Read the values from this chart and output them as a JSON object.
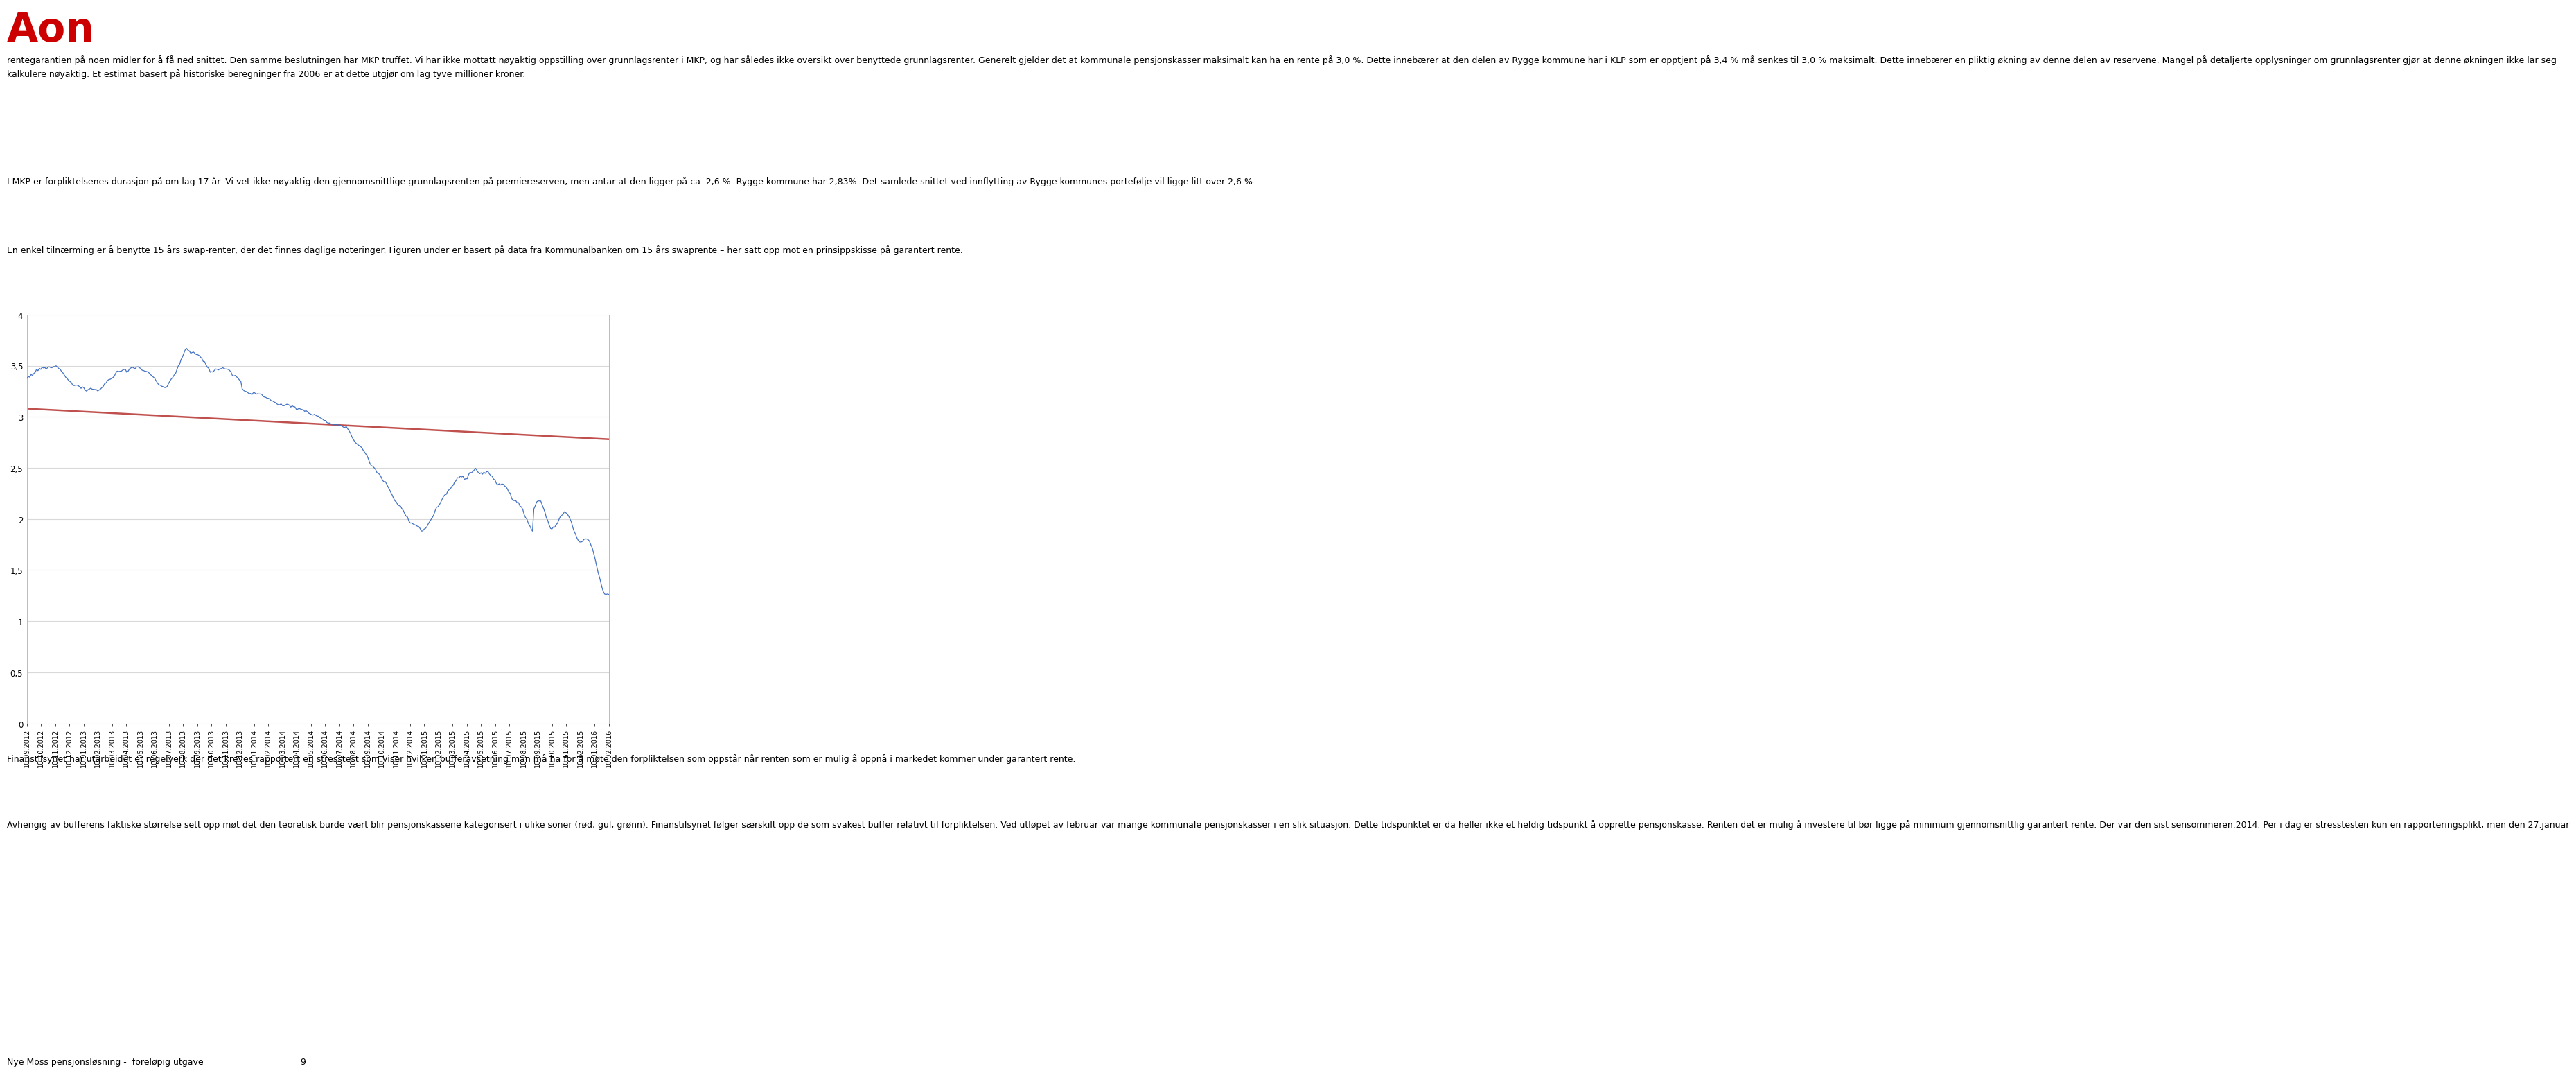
{
  "page_bg": "#ffffff",
  "text_color": "#000000",
  "logo_color": "#cc0000",
  "paragraph1": "rentegarantien på noen midler for å få ned snittet. Den samme beslutningen har MKP truffet. Vi har ikke mottatt nøyaktig oppstilling over grunnlagsrenter i MKP, og har således ikke oversikt over benyttede grunnlagsrenter. Generelt gjelder det at kommunale pensjonskasser maksimalt kan ha en rente på 3,0 %. Dette innebærer at den delen av Rygge kommune har i KLP som er opptjent på 3,4 % må senkes til 3,0 % maksimalt. Dette innebærer en pliktig økning av denne delen av reservene. Mangel på detaljerte opplysninger om grunnlagsrenter gjør at denne økningen ikke lar seg kalkulere nøyaktig. Et estimat basert på historiske beregninger fra 2006 er at dette utgjør om lag tyve millioner kroner.",
  "paragraph2": "I MKP er forpliktelsenes durasjon på om lag 17 år. Vi vet ikke nøyaktig den gjennomsnittlige grunnlagsrenten på premiereserven, men antar at den ligger på ca. 2,6 %. Rygge kommune har 2,83%. Det samlede snittet ved innflytting av Rygge kommunes portefølje vil ligge litt over 2,6 %.",
  "paragraph3": "En enkel tilnærming er å benytte 15 års swap-renter, der det finnes daglige noteringer. Figuren under er basert på data fra Kommunalbanken om 15 års swaprente – her satt opp mot en prinsippskisse på garantert rente.",
  "paragraph4": "Finanstilsynet har utarbeidet et regelverk der det kreves rapportert en stresstest som viser hvilken bufferavsetning man må ha for å møte den forpliktelsen som oppstår når renten som er mulig å oppnå i markedet kommer under garantert rente.",
  "paragraph5": "Avhengig av bufferens faktiske størrelse sett opp møt det den teoretisk burde vært blir pensjonskassene kategorisert i ulike soner (rød, gul, grønn). Finanstilsynet følger særskilt opp de som svakest buffer relativt til forpliktelsen. Ved utløpet av februar var mange kommunale pensjonskasser i en slik situasjon. Dette tidspunktet er da heller ikke et heldig tidspunkt å opprette pensjonskasse. Renten det er mulig å investere til bør ligge på minimum gjennomsnittlig garantert rente. Der var den sist sensommeren.2014. Per i dag er stresstesten kun en rapporteringsplikt, men den 27.januar",
  "footer_text": "Nye Moss pensjonsløsning -  foreløpig utgave",
  "page_number": "9",
  "chart_ylim": [
    0,
    4
  ],
  "chart_yticks": [
    0,
    0.5,
    1,
    1.5,
    2,
    2.5,
    3,
    3.5,
    4
  ],
  "chart_yticklabels": [
    "0",
    "0,5",
    "1",
    "1,5",
    "2",
    "2,5",
    "3",
    "3,5",
    "4"
  ],
  "blue_line_color": "#4472C4",
  "red_line_color": "#C0504D",
  "chart_bg": "#ffffff",
  "grid_color": "#d9d9d9",
  "chart_border_color": "#aaaaaa",
  "xtick_labels": [
    "10.09.2012",
    "10.10.2012",
    "10.11.2012",
    "10.12.2012",
    "10.01.2013",
    "10.02.2013",
    "10.03.2013",
    "10.04.2013",
    "10.05.2013",
    "10.06.2013",
    "10.07.2013",
    "10.08.2013",
    "10.09.2013",
    "10.10.2013",
    "10.11.2013",
    "10.12.2013",
    "10.01.2014",
    "10.02.2014",
    "10.03.2014",
    "10.04.2014",
    "10.05.2014",
    "10.06.2014",
    "10.07.2014",
    "10.08.2014",
    "10.09.2014",
    "10.10.2014",
    "10.11.2014",
    "10.12.2014",
    "10.01.2015",
    "10.02.2015",
    "10.03.2015",
    "10.04.2015",
    "10.05.2015",
    "10.06.2015",
    "10.07.2015",
    "10.08.2015",
    "10.09.2015",
    "10.10.2015",
    "10.11.2015",
    "10.12.2015",
    "10.01.2016",
    "10.02.2016"
  ]
}
